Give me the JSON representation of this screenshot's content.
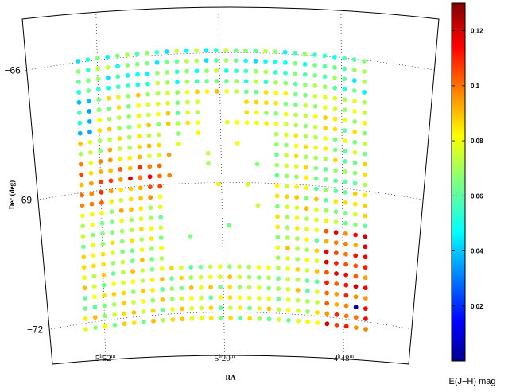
{
  "chart_data": {
    "type": "scatter",
    "projection": "sky map (RA vs Dec)",
    "xlabel": "RA",
    "ylabel": "Dec (deg)",
    "dec_ticks": [
      {
        "label": "−66",
        "value": -66
      },
      {
        "label": "−69",
        "value": -69
      },
      {
        "label": "−72",
        "value": -72
      }
    ],
    "ra_ticks": [
      {
        "h": "5",
        "m": "52",
        "value_h": 5.867
      },
      {
        "h": "5",
        "m": "20",
        "value_h": 5.333
      },
      {
        "h": "4",
        "m": "48",
        "value_h": 4.8
      }
    ],
    "grid": true,
    "colorbar": {
      "label": "E(J−H) mag",
      "range": [
        0,
        0.13
      ],
      "ticks": [
        0.02,
        0.04,
        0.06,
        0.08,
        0.1,
        0.12
      ],
      "tick_labels": [
        "0.02",
        "0.04",
        "0.06",
        "0.08",
        "0.1",
        "0.12"
      ],
      "colormap": "jet"
    },
    "sampling": {
      "dec_rows_deg": [
        -65.9,
        -72.1
      ],
      "row_count": 27,
      "ra_range_h": [
        4.7,
        5.95
      ],
      "points_per_row": 30,
      "empty_region_deg": "center of field (no measurements)"
    },
    "value_summary": {
      "typical": 0.075,
      "high_regions": "east edge near Dec -68.5 to -70, west edge near Dec -71.5 to -72",
      "min": 0.005,
      "max": 0.13
    }
  }
}
